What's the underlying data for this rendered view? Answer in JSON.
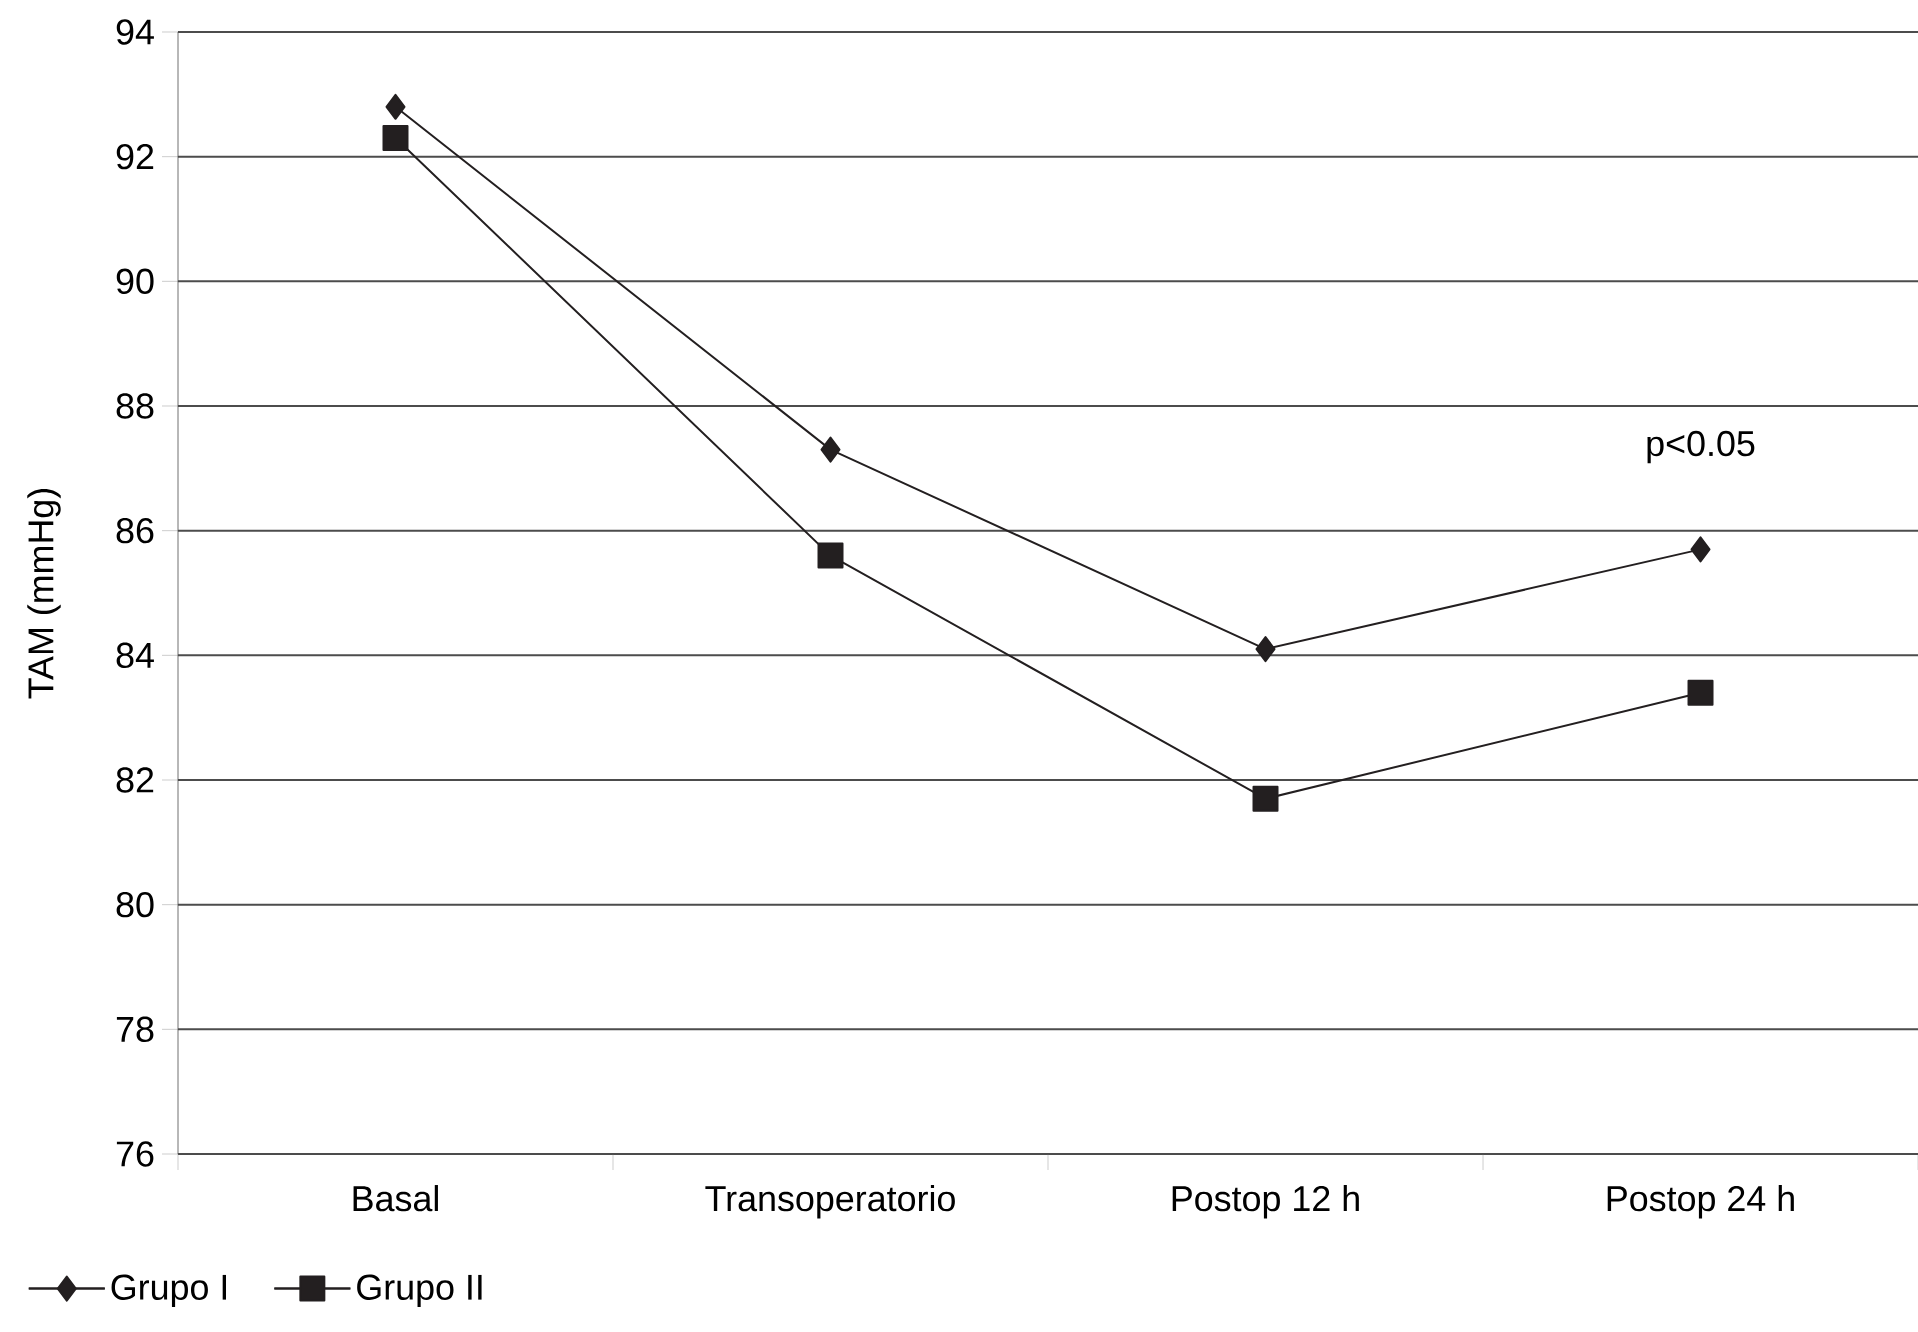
{
  "chart_data": {
    "type": "line",
    "ylabel": "TAM (mmHg)",
    "categories": [
      "Basal",
      "Transoperatorio",
      "Postop 12 h",
      "Postop 24 h"
    ],
    "series": [
      {
        "name": "Grupo I",
        "color": "#231f20",
        "marker": "diamond",
        "values": [
          92.8,
          87.3,
          84.1,
          85.7
        ]
      },
      {
        "name": "Grupo II",
        "color": "#231f20",
        "marker": "square",
        "values": [
          92.3,
          85.6,
          81.7,
          83.4
        ]
      }
    ],
    "ylim": [
      76,
      94
    ],
    "yticks": [
      76,
      78,
      80,
      82,
      84,
      86,
      88,
      90,
      92,
      94
    ],
    "grid": "y",
    "legend": "bottom left",
    "line_style": "solid",
    "annotations": [
      "p<0.05"
    ]
  }
}
